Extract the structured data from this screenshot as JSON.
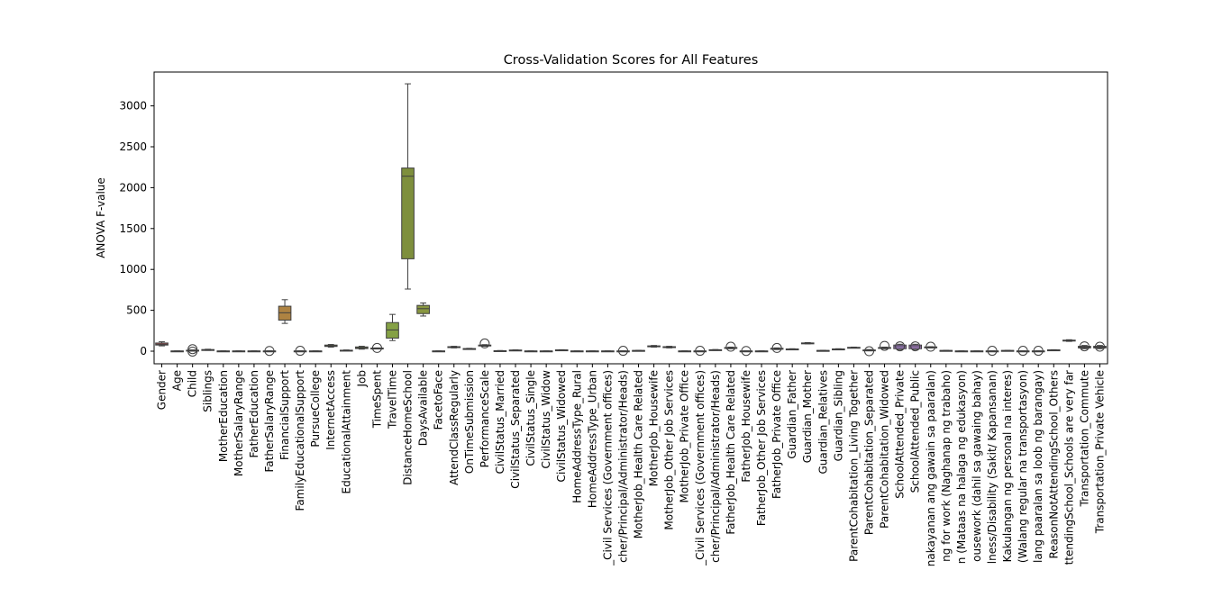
{
  "chart_data": {
    "type": "box",
    "title": "Cross-Validation Scores for All Features",
    "y_label": "ANOVA F-value",
    "categories": [
      "Gender",
      "Age",
      "Child",
      "Siblings",
      "MotherEducation",
      "MotherSalaryRange",
      "FatherEducation",
      "FatherSalaryRange",
      "FinancialSupport",
      "FamilyEducationalSupport",
      "PursueCollege",
      "InternetAccess",
      "EducationalAttainment",
      "Job",
      "TimeSpent",
      "TravelTime",
      "DistanceHomeSchool",
      "DaysAvailable",
      "FacetoFace",
      "AttendClassRegularly",
      "OnTimeSubmission",
      "PerformanceScale",
      "CivilStatus_Married",
      "CivilStatus_Separated",
      "CivilStatus_Single",
      "CivilStatus_Widow",
      "CivilStatus_Widowed",
      "HomeAddressType_Rural",
      "HomeAddressType_Urban",
      "_Civil Services (Government offices)",
      "cher/Principal/Administrator/Heads)",
      "MotherJob_Health Care Related",
      "MotherJob_Housewife",
      "MotherJob_Other Job Services",
      "MotherJob_Private Office",
      "_Civil Services (Government offices)",
      "cher/Principal/Administrator/Heads)",
      "FatherJob_Health Care Related",
      "FatherJob_Housewife",
      "FatherJob_Other Job Services",
      "FatherJob_Private Office",
      "Guardian_Father",
      "Guardian_Mother",
      "Guardian_Relatives",
      "Guardian_Sibling",
      "ParentCohabitation_Living Together",
      "ParentCohabitation_Separated",
      "ParentCohabitation_Widowed",
      "SchoolAttended_Private",
      "SchoolAttended_Public",
      "nakayanan ang gawain sa paaralan)",
      "ng for work (Naghanap ng trabaho)",
      "n (Mataas na halaga ng edukasyon)",
      "ousework (dahil sa gawaing bahay)",
      "lness/Disability (Sakit/ Kapansanan)",
      "Kakulangan ng personal na interes)",
      "(Walang regular na transportasyon)",
      "lang paaralan sa loob ng barangay)",
      "ReasonNotAttendingSchool_Others",
      "ttendingSchool_Schools are very far",
      "Transportation_Commute",
      "Transportation_Private Vehicle"
    ],
    "boxes": [
      {
        "low": 65,
        "q1": 75,
        "median": 85,
        "q3": 100,
        "high": 115,
        "fliers": []
      },
      {
        "low": 0,
        "q1": 1,
        "median": 2,
        "q3": 3,
        "high": 4,
        "fliers": []
      },
      {
        "low": 2,
        "q1": 5,
        "median": 8,
        "q3": 12,
        "high": 15,
        "fliers": [
          -5,
          25
        ]
      },
      {
        "low": 10,
        "q1": 14,
        "median": 17,
        "q3": 20,
        "high": 24,
        "fliers": []
      },
      {
        "low": 0,
        "q1": 1,
        "median": 2,
        "q3": 3,
        "high": 4,
        "fliers": []
      },
      {
        "low": 0,
        "q1": 1,
        "median": 2,
        "q3": 3,
        "high": 4,
        "fliers": []
      },
      {
        "low": 0,
        "q1": 1,
        "median": 2,
        "q3": 3,
        "high": 4,
        "fliers": []
      },
      {
        "low": 0,
        "q1": 1,
        "median": 2,
        "q3": 3,
        "high": 4,
        "fliers": [
          3
        ]
      },
      {
        "low": 340,
        "q1": 380,
        "median": 470,
        "q3": 550,
        "high": 630,
        "fliers": []
      },
      {
        "low": 0,
        "q1": 1,
        "median": 2,
        "q3": 3,
        "high": 4,
        "fliers": [
          5
        ]
      },
      {
        "low": 0,
        "q1": 1,
        "median": 2,
        "q3": 3,
        "high": 4,
        "fliers": []
      },
      {
        "low": 50,
        "q1": 58,
        "median": 65,
        "q3": 75,
        "high": 82,
        "fliers": []
      },
      {
        "low": 5,
        "q1": 8,
        "median": 10,
        "q3": 12,
        "high": 15,
        "fliers": []
      },
      {
        "low": 25,
        "q1": 32,
        "median": 42,
        "q3": 52,
        "high": 60,
        "fliers": []
      },
      {
        "low": 30,
        "q1": 34,
        "median": 36,
        "q3": 38,
        "high": 40,
        "fliers": [
          40
        ]
      },
      {
        "low": 130,
        "q1": 160,
        "median": 260,
        "q3": 350,
        "high": 450,
        "fliers": []
      },
      {
        "low": 760,
        "q1": 1130,
        "median": 2140,
        "q3": 2240,
        "high": 3270,
        "fliers": []
      },
      {
        "low": 430,
        "q1": 460,
        "median": 520,
        "q3": 560,
        "high": 590,
        "fliers": []
      },
      {
        "low": 0,
        "q1": 1,
        "median": 2,
        "q3": 3,
        "high": 4,
        "fliers": []
      },
      {
        "low": 40,
        "q1": 45,
        "median": 50,
        "q3": 55,
        "high": 60,
        "fliers": []
      },
      {
        "low": 25,
        "q1": 28,
        "median": 30,
        "q3": 32,
        "high": 35,
        "fliers": []
      },
      {
        "low": 60,
        "q1": 65,
        "median": 70,
        "q3": 75,
        "high": 80,
        "fliers": [
          95
        ]
      },
      {
        "low": 2,
        "q1": 4,
        "median": 5,
        "q3": 6,
        "high": 8,
        "fliers": []
      },
      {
        "low": 8,
        "q1": 10,
        "median": 12,
        "q3": 14,
        "high": 16,
        "fliers": []
      },
      {
        "low": 0,
        "q1": 1,
        "median": 2,
        "q3": 3,
        "high": 4,
        "fliers": []
      },
      {
        "low": 0,
        "q1": 1,
        "median": 2,
        "q3": 3,
        "high": 4,
        "fliers": []
      },
      {
        "low": 10,
        "q1": 12,
        "median": 14,
        "q3": 16,
        "high": 18,
        "fliers": []
      },
      {
        "low": 0,
        "q1": 1,
        "median": 2,
        "q3": 3,
        "high": 4,
        "fliers": []
      },
      {
        "low": 0,
        "q1": 1,
        "median": 2,
        "q3": 3,
        "high": 4,
        "fliers": []
      },
      {
        "low": 0,
        "q1": 1,
        "median": 2,
        "q3": 3,
        "high": 4,
        "fliers": []
      },
      {
        "low": 0,
        "q1": 1,
        "median": 2,
        "q3": 3,
        "high": 4,
        "fliers": [
          5
        ]
      },
      {
        "low": 5,
        "q1": 7,
        "median": 8,
        "q3": 9,
        "high": 11,
        "fliers": []
      },
      {
        "low": 50,
        "q1": 55,
        "median": 60,
        "q3": 65,
        "high": 70,
        "fliers": []
      },
      {
        "low": 40,
        "q1": 45,
        "median": 50,
        "q3": 55,
        "high": 60,
        "fliers": []
      },
      {
        "low": 0,
        "q1": 1,
        "median": 2,
        "q3": 3,
        "high": 4,
        "fliers": []
      },
      {
        "low": 0,
        "q1": 1,
        "median": 2,
        "q3": 3,
        "high": 4,
        "fliers": [
          5
        ]
      },
      {
        "low": 10,
        "q1": 12,
        "median": 15,
        "q3": 18,
        "high": 20,
        "fliers": []
      },
      {
        "low": 30,
        "q1": 35,
        "median": 40,
        "q3": 45,
        "high": 50,
        "fliers": [
          55
        ]
      },
      {
        "low": 0,
        "q1": 1,
        "median": 2,
        "q3": 3,
        "high": 4,
        "fliers": [
          3
        ]
      },
      {
        "low": 0,
        "q1": 1,
        "median": 2,
        "q3": 3,
        "high": 4,
        "fliers": []
      },
      {
        "low": 20,
        "q1": 25,
        "median": 30,
        "q3": 35,
        "high": 40,
        "fliers": [
          40
        ]
      },
      {
        "low": 20,
        "q1": 23,
        "median": 25,
        "q3": 27,
        "high": 30,
        "fliers": []
      },
      {
        "low": 90,
        "q1": 95,
        "median": 98,
        "q3": 101,
        "high": 105,
        "fliers": []
      },
      {
        "low": 5,
        "q1": 7,
        "median": 8,
        "q3": 9,
        "high": 11,
        "fliers": []
      },
      {
        "low": 20,
        "q1": 23,
        "median": 25,
        "q3": 27,
        "high": 30,
        "fliers": []
      },
      {
        "low": 40,
        "q1": 43,
        "median": 45,
        "q3": 47,
        "high": 50,
        "fliers": []
      },
      {
        "low": 5,
        "q1": 8,
        "median": 10,
        "q3": 15,
        "high": 20,
        "fliers": [
          0
        ]
      },
      {
        "low": 30,
        "q1": 35,
        "median": 40,
        "q3": 45,
        "high": 50,
        "fliers": [
          65
        ]
      },
      {
        "low": 20,
        "q1": 30,
        "median": 55,
        "q3": 75,
        "high": 85,
        "fliers": [
          60
        ]
      },
      {
        "low": 20,
        "q1": 30,
        "median": 55,
        "q3": 75,
        "high": 85,
        "fliers": [
          60
        ]
      },
      {
        "low": 40,
        "q1": 45,
        "median": 50,
        "q3": 52,
        "high": 55,
        "fliers": [
          55
        ]
      },
      {
        "low": 5,
        "q1": 7,
        "median": 8,
        "q3": 9,
        "high": 11,
        "fliers": []
      },
      {
        "low": 0,
        "q1": 1,
        "median": 2,
        "q3": 3,
        "high": 4,
        "fliers": []
      },
      {
        "low": 0,
        "q1": 1,
        "median": 2,
        "q3": 3,
        "high": 4,
        "fliers": []
      },
      {
        "low": 0,
        "q1": 1,
        "median": 2,
        "q3": 3,
        "high": 4,
        "fliers": [
          5
        ]
      },
      {
        "low": 5,
        "q1": 7,
        "median": 8,
        "q3": 9,
        "high": 11,
        "fliers": []
      },
      {
        "low": 0,
        "q1": 1,
        "median": 2,
        "q3": 3,
        "high": 4,
        "fliers": [
          5
        ]
      },
      {
        "low": 0,
        "q1": 1,
        "median": 2,
        "q3": 3,
        "high": 4,
        "fliers": [
          5
        ]
      },
      {
        "low": 10,
        "q1": 12,
        "median": 14,
        "q3": 16,
        "high": 18,
        "fliers": []
      },
      {
        "low": 120,
        "q1": 125,
        "median": 130,
        "q3": 135,
        "high": 140,
        "fliers": []
      },
      {
        "low": 30,
        "q1": 40,
        "median": 50,
        "q3": 60,
        "high": 70,
        "fliers": [
          60
        ]
      },
      {
        "low": 30,
        "q1": 40,
        "median": 50,
        "q3": 60,
        "high": 70,
        "fliers": [
          55
        ]
      }
    ],
    "colors": [
      "hsl(0,45%,55%)",
      "hsl(6,45%,55%)",
      "hsl(12,45%,55%)",
      "hsl(17,45%,55%)",
      "hsl(23,45%,55%)",
      "hsl(29,45%,55%)",
      "hsl(35,45%,50%)",
      "hsl(41,45%,50%)",
      "hsl(36,45%,47%)",
      "hsl(52,45%,45%)",
      "hsl(58,45%,45%)",
      "hsl(64,45%,45%)",
      "hsl(70,45%,45%)",
      "hsl(75,45%,45%)",
      "hsl(81,45%,45%)",
      "hsl(78,40%,45%)",
      "hsl(72,40%,40%)",
      "hsl(70,40%,42%)",
      "hsl(105,45%,45%)",
      "hsl(110,45%,45%)",
      "hsl(116,45%,45%)",
      "hsl(122,45%,45%)",
      "hsl(128,45%,45%)",
      "hsl(134,45%,45%)",
      "hsl(139,45%,45%)",
      "hsl(145,45%,45%)",
      "hsl(151,45%,45%)",
      "hsl(157,45%,45%)",
      "hsl(163,45%,45%)",
      "hsl(168,45%,45%)",
      "hsl(174,45%,45%)",
      "hsl(180,45%,45%)",
      "hsl(186,45%,45%)",
      "hsl(192,45%,45%)",
      "hsl(197,45%,50%)",
      "hsl(203,45%,55%)",
      "hsl(209,45%,55%)",
      "hsl(215,45%,60%)",
      "hsl(221,45%,60%)",
      "hsl(226,45%,60%)",
      "hsl(232,45%,65%)",
      "hsl(238,45%,65%)",
      "hsl(244,45%,65%)",
      "hsl(250,45%,65%)",
      "hsl(255,45%,65%)",
      "hsl(261,45%,65%)",
      "hsl(267,45%,65%)",
      "hsl(273,45%,65%)",
      "hsl(270,55%,70%)",
      "hsl(275,55%,70%)",
      "hsl(290,45%,65%)",
      "hsl(296,45%,65%)",
      "hsl(302,45%,65%)",
      "hsl(308,45%,65%)",
      "hsl(314,45%,65%)",
      "hsl(319,45%,65%)",
      "hsl(325,45%,65%)",
      "hsl(331,45%,65%)",
      "hsl(337,45%,65%)",
      "hsl(343,45%,65%)",
      "hsl(348,45%,60%)",
      "hsl(354,45%,60%)"
    ],
    "ylim": [
      -154,
      3414
    ],
    "yticks": [
      0,
      500,
      1000,
      1500,
      2000,
      2500,
      3000
    ]
  }
}
